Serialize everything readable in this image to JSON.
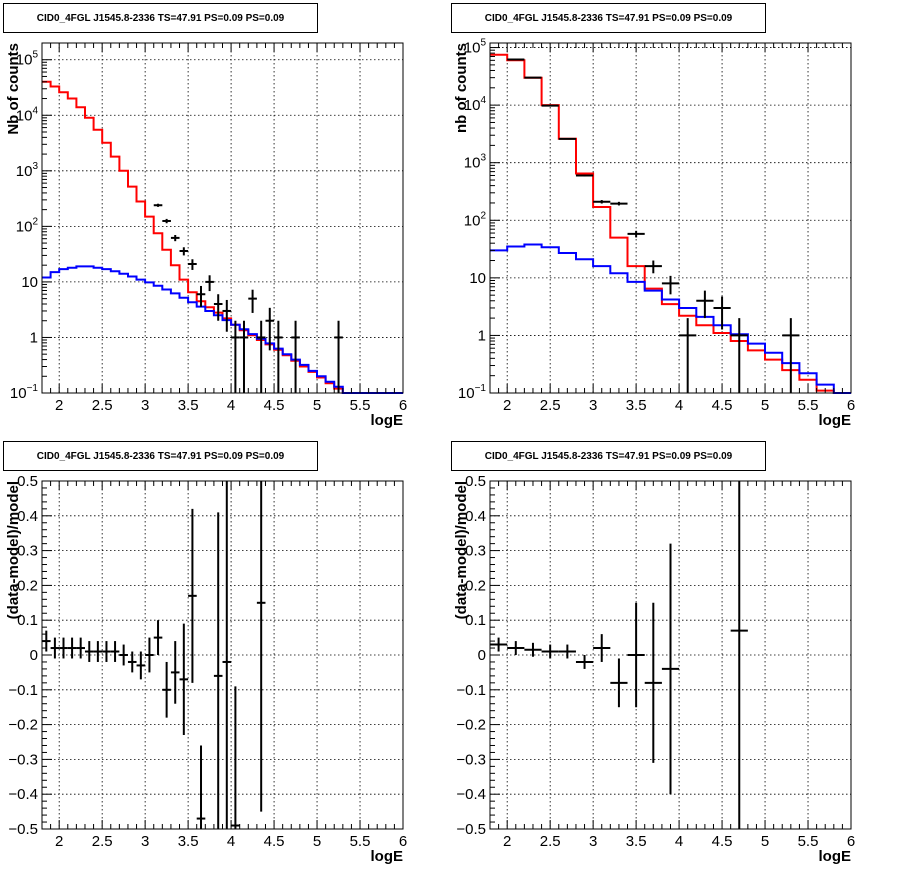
{
  "colors": {
    "model_total": "#ff0000",
    "model_source": "#0000ff",
    "data": "#000000",
    "grid": "#000000"
  },
  "chart_data": [
    {
      "type": "line",
      "title": "CID0_4FGL J1545.8-2336 TS=47.91 PS=0.09 PS=0.09",
      "xlabel": "logE",
      "ylabel": "Nb of counts",
      "xlim": [
        1.8,
        6.0
      ],
      "ylim": [
        0.1,
        200000
      ],
      "yscale": "log",
      "grid": true,
      "x_ticks": [
        "2",
        "2.5",
        "3",
        "3.5",
        "4",
        "4.5",
        "5",
        "5.5",
        "6"
      ],
      "y_ticks": [
        {
          "v": 0.1,
          "label": "10",
          "exp": "−1"
        },
        {
          "v": 1,
          "label": "1",
          "exp": ""
        },
        {
          "v": 10,
          "label": "10",
          "exp": ""
        },
        {
          "v": 100,
          "label": "10",
          "exp": "2"
        },
        {
          "v": 1000,
          "label": "10",
          "exp": "3"
        },
        {
          "v": 10000,
          "label": "10",
          "exp": "4"
        },
        {
          "v": 100000,
          "label": "10",
          "exp": "5"
        }
      ],
      "bin_width": 0.1,
      "series": [
        {
          "name": "total model",
          "kind": "step",
          "color": "#ff0000",
          "x": [
            1.8,
            1.9,
            2.0,
            2.1,
            2.2,
            2.3,
            2.4,
            2.5,
            2.6,
            2.7,
            2.8,
            2.9,
            3.0,
            3.1,
            3.2,
            3.3,
            3.4,
            3.5,
            3.6,
            3.7,
            3.8,
            3.9,
            4.0,
            4.1,
            4.2,
            4.3,
            4.4,
            4.5,
            4.6,
            4.7,
            4.8,
            4.9,
            5.0,
            5.1,
            5.2,
            5.3,
            5.4,
            5.5,
            5.6,
            5.7,
            5.8,
            5.9
          ],
          "values": [
            40000,
            33000,
            26000,
            20000,
            14000,
            9000,
            5500,
            3200,
            1800,
            1000,
            520,
            280,
            150,
            75,
            38,
            20,
            11,
            6.5,
            4.5,
            3.5,
            2.8,
            2.2,
            1.7,
            1.35,
            1.1,
            0.9,
            0.75,
            0.6,
            0.48,
            0.38,
            0.3,
            0.24,
            0.19,
            0.15,
            0.12,
            0.1,
            0.09,
            0.09,
            0.09,
            0.09,
            0.09,
            0.09
          ]
        },
        {
          "name": "source model",
          "kind": "step",
          "color": "#0000ff",
          "x": [
            1.8,
            1.9,
            2.0,
            2.1,
            2.2,
            2.3,
            2.4,
            2.5,
            2.6,
            2.7,
            2.8,
            2.9,
            3.0,
            3.1,
            3.2,
            3.3,
            3.4,
            3.5,
            3.6,
            3.7,
            3.8,
            3.9,
            4.0,
            4.1,
            4.2,
            4.3,
            4.4,
            4.5,
            4.6,
            4.7,
            4.8,
            4.9,
            5.0,
            5.1,
            5.2,
            5.3,
            5.4,
            5.5,
            5.6,
            5.7,
            5.8,
            5.9
          ],
          "values": [
            12,
            15,
            17,
            18,
            19,
            19,
            18,
            17,
            15.5,
            14,
            12.5,
            11,
            9.8,
            8.5,
            7.3,
            6.2,
            5.2,
            4.3,
            3.6,
            3.0,
            2.5,
            2.05,
            1.7,
            1.4,
            1.15,
            0.95,
            0.78,
            0.63,
            0.5,
            0.4,
            0.32,
            0.25,
            0.2,
            0.16,
            0.13,
            0.1,
            0.09,
            0.09,
            0.09,
            0.09,
            0.09,
            0.09
          ]
        },
        {
          "name": "data",
          "kind": "points",
          "color": "#000000",
          "points": [
            [
              3.15,
              240
            ],
            [
              3.25,
              125
            ],
            [
              3.35,
              62
            ],
            [
              3.45,
              36
            ],
            [
              3.55,
              21
            ],
            [
              3.65,
              6
            ],
            [
              3.75,
              10
            ],
            [
              3.85,
              4
            ],
            [
              3.95,
              3
            ],
            [
              4.05,
              1
            ],
            [
              4.15,
              1
            ],
            [
              4.25,
              5
            ],
            [
              4.35,
              1
            ],
            [
              4.45,
              2
            ],
            [
              4.55,
              1
            ],
            [
              4.75,
              1
            ],
            [
              5.25,
              1
            ]
          ]
        }
      ]
    },
    {
      "type": "line",
      "title": "CID0_4FGL J1545.8-2336 TS=47.91 PS=0.09 PS=0.09",
      "xlabel": "logE",
      "ylabel": "nb of counts",
      "xlim": [
        1.8,
        6.0
      ],
      "ylim": [
        0.1,
        120000
      ],
      "yscale": "log",
      "grid": true,
      "x_ticks": [
        "2",
        "2.5",
        "3",
        "3.5",
        "4",
        "4.5",
        "5",
        "5.5",
        "6"
      ],
      "y_ticks": [
        {
          "v": 0.1,
          "label": "10",
          "exp": "−1"
        },
        {
          "v": 1,
          "label": "1",
          "exp": ""
        },
        {
          "v": 10,
          "label": "10",
          "exp": ""
        },
        {
          "v": 100,
          "label": "10",
          "exp": "2"
        },
        {
          "v": 1000,
          "label": "10",
          "exp": "3"
        },
        {
          "v": 10000,
          "label": "10",
          "exp": "4"
        },
        {
          "v": 100000,
          "label": "10",
          "exp": "5"
        }
      ],
      "bin_width": 0.2,
      "series": [
        {
          "name": "total model",
          "kind": "step",
          "color": "#ff0000",
          "x": [
            1.8,
            2.0,
            2.2,
            2.4,
            2.6,
            2.8,
            3.0,
            3.2,
            3.4,
            3.6,
            3.8,
            4.0,
            4.2,
            4.4,
            4.6,
            4.8,
            5.0,
            5.2,
            5.4,
            5.6,
            5.8
          ],
          "values": [
            75000,
            60000,
            30000,
            10000,
            2600,
            650,
            170,
            50,
            16,
            6.5,
            3.5,
            2.2,
            1.5,
            1.1,
            0.8,
            0.55,
            0.38,
            0.25,
            0.17,
            0.11,
            0.09
          ]
        },
        {
          "name": "source model",
          "kind": "step",
          "color": "#0000ff",
          "x": [
            1.8,
            2.0,
            2.2,
            2.4,
            2.6,
            2.8,
            3.0,
            3.2,
            3.4,
            3.6,
            3.8,
            4.0,
            4.2,
            4.4,
            4.6,
            4.8,
            5.0,
            5.2,
            5.4,
            5.6,
            5.8
          ],
          "values": [
            30,
            35,
            38,
            34,
            27,
            21,
            16,
            12,
            8.5,
            6,
            4.2,
            3,
            2.1,
            1.5,
            1.05,
            0.72,
            0.5,
            0.33,
            0.22,
            0.14,
            0.09
          ]
        },
        {
          "name": "data",
          "kind": "points",
          "color": "#000000",
          "points": [
            [
              2.1,
              62000
            ],
            [
              2.3,
              30000
            ],
            [
              2.5,
              9800
            ],
            [
              2.7,
              2600
            ],
            [
              2.9,
              600
            ],
            [
              3.1,
              210
            ],
            [
              3.3,
              195
            ],
            [
              3.5,
              58
            ],
            [
              3.7,
              16
            ],
            [
              3.9,
              8
            ],
            [
              4.1,
              1
            ],
            [
              4.3,
              4
            ],
            [
              4.5,
              3
            ],
            [
              4.7,
              1
            ],
            [
              5.3,
              1
            ]
          ]
        }
      ]
    },
    {
      "type": "scatter",
      "title": "CID0_4FGL J1545.8-2336 TS=47.91 PS=0.09 PS=0.09",
      "xlabel": "logE",
      "ylabel": "(data-model)/model",
      "xlim": [
        1.8,
        6.0
      ],
      "ylim": [
        -0.5,
        0.5
      ],
      "yscale": "linear",
      "grid": true,
      "x_ticks": [
        "2",
        "2.5",
        "3",
        "3.5",
        "4",
        "4.5",
        "5",
        "5.5",
        "6"
      ],
      "y_ticks": [
        {
          "v": -0.5,
          "label": "−0.5"
        },
        {
          "v": -0.4,
          "label": "−0.4"
        },
        {
          "v": -0.3,
          "label": "−0.3"
        },
        {
          "v": -0.2,
          "label": "−0.2"
        },
        {
          "v": -0.1,
          "label": "−0.1"
        },
        {
          "v": 0,
          "label": "0"
        },
        {
          "v": 0.1,
          "label": "0.1"
        },
        {
          "v": 0.2,
          "label": "0.2"
        },
        {
          "v": 0.3,
          "label": "0.3"
        },
        {
          "v": 0.4,
          "label": "0.4"
        },
        {
          "v": 0.5,
          "label": "0.5"
        }
      ],
      "bin_width": 0.1,
      "series": [
        {
          "name": "residuals",
          "kind": "errorbars",
          "color": "#000000",
          "points": [
            [
              1.85,
              0.04,
              0.03
            ],
            [
              1.95,
              0.02,
              0.03
            ],
            [
              2.05,
              0.02,
              0.03
            ],
            [
              2.15,
              0.02,
              0.03
            ],
            [
              2.25,
              0.02,
              0.03
            ],
            [
              2.35,
              0.01,
              0.03
            ],
            [
              2.45,
              0.01,
              0.03
            ],
            [
              2.55,
              0.01,
              0.03
            ],
            [
              2.65,
              0.01,
              0.03
            ],
            [
              2.75,
              0.0,
              0.03
            ],
            [
              2.85,
              -0.02,
              0.03
            ],
            [
              2.95,
              -0.03,
              0.04
            ],
            [
              3.05,
              0.0,
              0.05
            ],
            [
              3.15,
              0.05,
              0.05
            ],
            [
              3.25,
              -0.1,
              0.08
            ],
            [
              3.35,
              -0.05,
              0.09
            ],
            [
              3.45,
              -0.07,
              0.16
            ],
            [
              3.55,
              0.17,
              0.25
            ],
            [
              3.65,
              -0.47,
              0.21
            ],
            [
              3.85,
              -0.06,
              0.47
            ],
            [
              3.95,
              -0.02,
              0.55
            ],
            [
              4.05,
              -0.49,
              0.4
            ],
            [
              4.35,
              0.15,
              0.6
            ]
          ]
        }
      ]
    },
    {
      "type": "scatter",
      "title": "CID0_4FGL J1545.8-2336 TS=47.91 PS=0.09 PS=0.09",
      "xlabel": "logE",
      "ylabel": "(data-model)/model",
      "xlim": [
        1.8,
        6.0
      ],
      "ylim": [
        -0.5,
        0.5
      ],
      "yscale": "linear",
      "grid": true,
      "x_ticks": [
        "2",
        "2.5",
        "3",
        "3.5",
        "4",
        "4.5",
        "5",
        "5.5",
        "6"
      ],
      "y_ticks": [
        {
          "v": -0.5,
          "label": "−0.5"
        },
        {
          "v": -0.4,
          "label": "−0.4"
        },
        {
          "v": -0.3,
          "label": "−0.3"
        },
        {
          "v": -0.2,
          "label": "−0.2"
        },
        {
          "v": -0.1,
          "label": "−0.1"
        },
        {
          "v": 0,
          "label": "0"
        },
        {
          "v": 0.1,
          "label": "0.1"
        },
        {
          "v": 0.2,
          "label": "0.2"
        },
        {
          "v": 0.3,
          "label": "0.3"
        },
        {
          "v": 0.4,
          "label": "0.4"
        },
        {
          "v": 0.5,
          "label": "0.5"
        }
      ],
      "bin_width": 0.2,
      "series": [
        {
          "name": "residuals",
          "kind": "errorbars",
          "color": "#000000",
          "points": [
            [
              1.9,
              0.03,
              0.02
            ],
            [
              2.1,
              0.02,
              0.02
            ],
            [
              2.3,
              0.015,
              0.02
            ],
            [
              2.5,
              0.01,
              0.02
            ],
            [
              2.7,
              0.01,
              0.02
            ],
            [
              2.9,
              -0.02,
              0.02
            ],
            [
              3.1,
              0.02,
              0.04
            ],
            [
              3.3,
              -0.08,
              0.07
            ],
            [
              3.5,
              0.0,
              0.15
            ],
            [
              3.7,
              -0.08,
              0.23
            ],
            [
              3.9,
              -0.04,
              0.36
            ],
            [
              4.7,
              0.07,
              0.6
            ]
          ]
        }
      ]
    }
  ]
}
